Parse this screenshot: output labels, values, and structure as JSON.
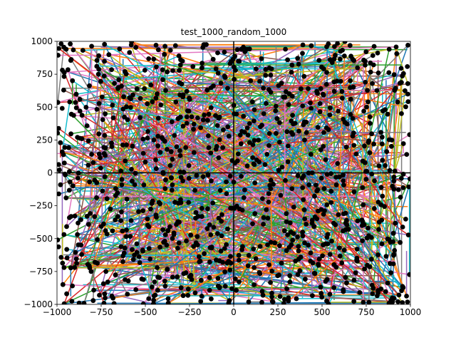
{
  "chart_data": {
    "type": "scatter",
    "title": "test_1000_random_1000",
    "xlabel": "",
    "ylabel": "",
    "xlim": [
      -1000,
      1000
    ],
    "ylim": [
      -1000,
      1000
    ],
    "x_ticks": [
      -1000,
      -750,
      -500,
      -250,
      0,
      250,
      500,
      750,
      1000
    ],
    "y_ticks": [
      -1000,
      -750,
      -500,
      -250,
      0,
      250,
      500,
      750,
      1000
    ],
    "x_tick_labels": [
      "−1000",
      "−750",
      "−500",
      "−250",
      "0",
      "250",
      "500",
      "750",
      "1000"
    ],
    "y_tick_labels": [
      "−1000",
      "−750",
      "−500",
      "−250",
      "0",
      "250",
      "500",
      "750",
      "1000"
    ],
    "grid": false,
    "legend": "none",
    "axis_lines": [
      {
        "orientation": "vertical",
        "x": 0
      },
      {
        "orientation": "horizontal",
        "y": 0
      }
    ],
    "point_count": 1000,
    "segment_count": 1000,
    "point_color": "#000000",
    "segment_palette": [
      "#1f77b4",
      "#ff7f0e",
      "#2ca02c",
      "#d62728",
      "#9467bd",
      "#8c564b",
      "#e377c2",
      "#7f7f7f",
      "#bcbd22",
      "#17becf"
    ],
    "points_sample": [
      {
        "x": -925,
        "y": 980
      },
      {
        "x": -615,
        "y": 770
      },
      {
        "x": -290,
        "y": 850
      },
      {
        "x": 10,
        "y": 780
      },
      {
        "x": 330,
        "y": 820
      },
      {
        "x": 570,
        "y": 960
      },
      {
        "x": 880,
        "y": 940
      },
      {
        "x": -870,
        "y": 470
      },
      {
        "x": -530,
        "y": 420
      },
      {
        "x": -150,
        "y": 630
      },
      {
        "x": 170,
        "y": 450
      },
      {
        "x": 470,
        "y": 620
      },
      {
        "x": 760,
        "y": 540
      },
      {
        "x": -970,
        "y": 160
      },
      {
        "x": -690,
        "y": 200
      },
      {
        "x": -390,
        "y": 240
      },
      {
        "x": -100,
        "y": 180
      },
      {
        "x": 240,
        "y": 300
      },
      {
        "x": 520,
        "y": 100
      },
      {
        "x": 840,
        "y": 220
      },
      {
        "x": -930,
        "y": 10
      },
      {
        "x": -560,
        "y": -90
      },
      {
        "x": -210,
        "y": -20
      },
      {
        "x": 0,
        "y": -70
      },
      {
        "x": 330,
        "y": -120
      },
      {
        "x": 620,
        "y": -60
      },
      {
        "x": 960,
        "y": -10
      },
      {
        "x": -830,
        "y": -330
      },
      {
        "x": -480,
        "y": -410
      },
      {
        "x": -180,
        "y": -270
      },
      {
        "x": 120,
        "y": -310
      },
      {
        "x": 410,
        "y": -390
      },
      {
        "x": 760,
        "y": -420
      },
      {
        "x": -900,
        "y": -720
      },
      {
        "x": -620,
        "y": -610
      },
      {
        "x": -270,
        "y": -760
      },
      {
        "x": 50,
        "y": -560
      },
      {
        "x": 350,
        "y": -670
      },
      {
        "x": 690,
        "y": -760
      },
      {
        "x": 910,
        "y": -590
      },
      {
        "x": -760,
        "y": -930
      },
      {
        "x": -370,
        "y": -990
      },
      {
        "x": -10,
        "y": -880
      },
      {
        "x": 310,
        "y": -950
      },
      {
        "x": 620,
        "y": -890
      },
      {
        "x": 930,
        "y": -980
      }
    ]
  }
}
